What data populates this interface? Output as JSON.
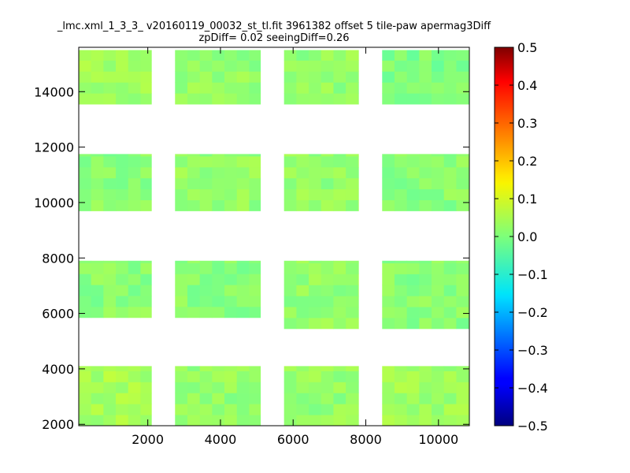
{
  "chart_data": {
    "type": "heatmap",
    "title_line1": "_lmc.xml_1_3_3_ v20160119_00032_st_tl.fit 3961382 offset 5 tile-paw apermag3Diff",
    "title_line2": "zpDiff= 0.02 seeingDiff=0.26",
    "xlabel": "",
    "ylabel": "",
    "xlim": [
      100,
      10850
    ],
    "ylim": [
      1950,
      15600
    ],
    "x_ticks": [
      2000,
      4000,
      6000,
      8000,
      10000
    ],
    "y_ticks": [
      2000,
      4000,
      6000,
      8000,
      10000,
      12000,
      14000
    ],
    "colormap": "jet",
    "color_range": [
      -0.5,
      0.5
    ],
    "colorbar_ticks": [
      "0.5",
      "0.4",
      "0.3",
      "0.2",
      "0.1",
      "0.0",
      "−0.1",
      "−0.2",
      "−0.3",
      "−0.4",
      "−0.5"
    ],
    "colorbar_tick_values": [
      0.5,
      0.4,
      0.3,
      0.2,
      0.1,
      0.0,
      -0.1,
      -0.2,
      -0.3,
      -0.4,
      -0.5
    ],
    "cell_size": [
      340,
      395
    ],
    "value_range_observed": [
      -0.1,
      0.08
    ],
    "detector_blocks": [
      {
        "x": [
          100,
          2100
        ],
        "y": [
          13550,
          15500
        ],
        "value": 0.03
      },
      {
        "x": [
          2750,
          5100
        ],
        "y": [
          13550,
          15500
        ],
        "value": 0.02
      },
      {
        "x": [
          5750,
          7800
        ],
        "y": [
          13550,
          15500
        ],
        "value": 0.02
      },
      {
        "x": [
          8450,
          10850
        ],
        "y": [
          13550,
          15500
        ],
        "value": 0.0
      },
      {
        "x": [
          100,
          2100
        ],
        "y": [
          9700,
          11750
        ],
        "value": 0.01
      },
      {
        "x": [
          2750,
          5100
        ],
        "y": [
          9700,
          11750
        ],
        "value": 0.02
      },
      {
        "x": [
          5750,
          7800
        ],
        "y": [
          9700,
          11750
        ],
        "value": 0.02
      },
      {
        "x": [
          8450,
          10850
        ],
        "y": [
          9700,
          11750
        ],
        "value": 0.01
      },
      {
        "x": [
          100,
          2100
        ],
        "y": [
          5850,
          7900
        ],
        "value": 0.01
      },
      {
        "x": [
          2750,
          5100
        ],
        "y": [
          5850,
          7900
        ],
        "value": 0.01
      },
      {
        "x": [
          5750,
          7800
        ],
        "y": [
          5450,
          7900
        ],
        "value": 0.02
      },
      {
        "x": [
          8450,
          10850
        ],
        "y": [
          5450,
          7900
        ],
        "value": 0.01
      },
      {
        "x": [
          100,
          2100
        ],
        "y": [
          1950,
          4100
        ],
        "value": 0.04
      },
      {
        "x": [
          2750,
          5100
        ],
        "y": [
          1950,
          4100
        ],
        "value": 0.02
      },
      {
        "x": [
          5750,
          7800
        ],
        "y": [
          1950,
          4100
        ],
        "value": 0.02
      },
      {
        "x": [
          8450,
          10850
        ],
        "y": [
          1950,
          4100
        ],
        "value": 0.03
      }
    ]
  }
}
